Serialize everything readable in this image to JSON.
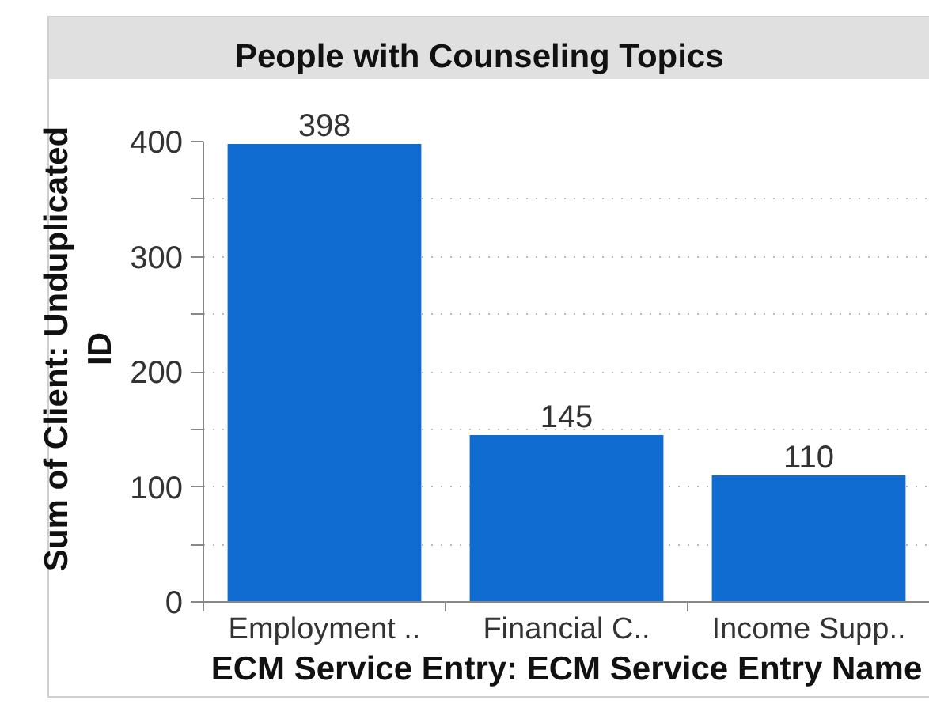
{
  "chart_data": {
    "type": "bar",
    "title": "People with Counseling Topics",
    "xlabel": "ECM Service Entry: ECM Service Entry Name",
    "ylabel": "Sum of Client: Unduplicated ID",
    "categories": [
      "Employment ..",
      "Financial C..",
      "Income Supp.."
    ],
    "values": [
      398,
      145,
      110
    ],
    "color": "#106cd0",
    "ylim": [
      0,
      400
    ],
    "yticks": [
      0,
      {
        "value": 50,
        "label": null
      },
      100,
      {
        "value": 150,
        "label": null
      },
      200,
      {
        "value": 250,
        "label": null
      },
      300,
      {
        "value": 350,
        "label": null
      },
      400
    ],
    "grid": "y",
    "data_labels": true
  }
}
